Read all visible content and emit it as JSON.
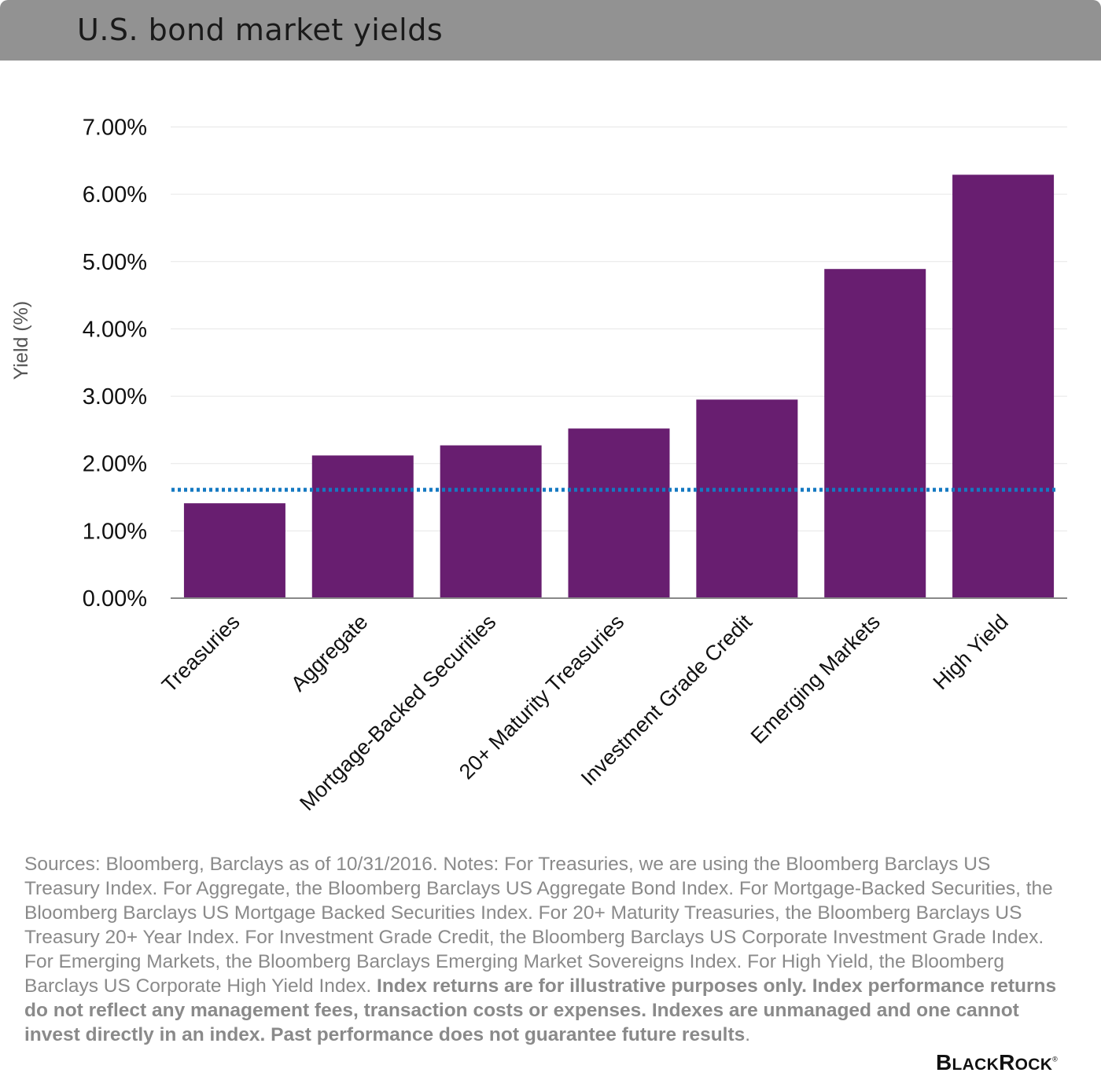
{
  "header": {
    "title": "U.S. bond market yields"
  },
  "chart_data": {
    "type": "bar",
    "title": "U.S. bond market yields",
    "xlabel": "",
    "ylabel": "Yield (%)",
    "ylim": [
      0,
      7
    ],
    "yticks": [
      "0.00%",
      "1.00%",
      "2.00%",
      "3.00%",
      "4.00%",
      "5.00%",
      "6.00%",
      "7.00%"
    ],
    "categories": [
      "Treasuries",
      "Aggregate",
      "Mortgage-Backed Securities",
      "20+ Maturity Treasuries",
      "Investment Grade Credit",
      "Emerging Markets",
      "High Yield"
    ],
    "values": [
      1.41,
      2.12,
      2.27,
      2.52,
      2.95,
      4.89,
      6.29
    ],
    "reference_line": {
      "value": 1.61,
      "style": "dotted"
    },
    "colors": {
      "bar": "#681e70",
      "reference_line": "#1479c2",
      "gridline": "#e6e6e6",
      "axis": "#888888"
    },
    "grid": true
  },
  "footnote": {
    "plain": "Sources: Bloomberg, Barclays as of 10/31/2016. Notes: For Treasuries, we are using the Bloomberg Barclays US Treasury Index. For Aggregate, the Bloomberg Barclays US Aggregate Bond Index. For Mortgage-Backed Securities, the Bloomberg Barclays US Mortgage Backed Securities Index. For 20+ Maturity Treasuries, the Bloomberg Barclays US Treasury 20+ Year Index. For Investment Grade Credit, the Bloomberg Barclays US Corporate Investment Grade Index. For Emerging Markets, the Bloomberg Barclays Emerging Market Sovereigns Index. For High Yield, the Bloomberg Barclays US Corporate High Yield Index.",
    "bold": "Index returns are for illustrative purposes only. Index performance returns do not reflect any management fees, transaction costs or expenses. Indexes are unmanaged and one cannot invest directly in an index. Past performance does not guarantee future results",
    "end": "."
  },
  "logo": {
    "text": "BLACKROCK",
    "mark": "®"
  }
}
